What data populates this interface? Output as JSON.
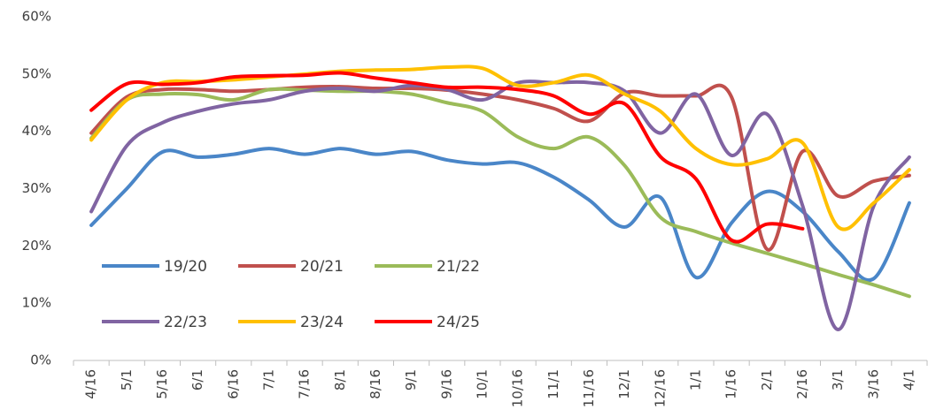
{
  "chart_data": {
    "type": "line",
    "categories": [
      "4/16",
      "5/1",
      "5/16",
      "6/1",
      "6/16",
      "7/1",
      "7/16",
      "8/1",
      "8/16",
      "9/1",
      "9/16",
      "10/1",
      "10/16",
      "11/1",
      "11/16",
      "12/1",
      "12/16",
      "1/1",
      "1/16",
      "2/1",
      "2/16",
      "3/1",
      "3/16",
      "4/1"
    ],
    "series": [
      {
        "name": "19/20",
        "color": "#4a86c8",
        "values": [
          23.6,
          30,
          36.4,
          35.5,
          36,
          37,
          36,
          37,
          36,
          36.5,
          35,
          34.3,
          34.5,
          32,
          28,
          23.3,
          28.5,
          14.5,
          24,
          29.5,
          26,
          19,
          14.3,
          27.5
        ]
      },
      {
        "name": "20/21",
        "color": "#c0504d",
        "values": [
          39.7,
          46,
          47.3,
          47.3,
          47,
          47.3,
          47.7,
          47.8,
          47.5,
          47.5,
          47.2,
          46.5,
          45.5,
          44,
          41.8,
          46.7,
          46.2,
          46.2,
          46,
          19.4,
          36.5,
          28.7,
          31.3,
          32.3
        ]
      },
      {
        "name": "21/22",
        "color": "#9bbb59",
        "values": [
          38.8,
          45.5,
          46.5,
          46.4,
          45.5,
          47.3,
          47.2,
          47,
          47,
          46.5,
          45,
          43.5,
          39,
          37,
          39,
          34,
          25,
          22.5,
          20.5,
          18.7,
          16.9,
          15,
          13.2,
          11.2
        ]
      },
      {
        "name": "22/23",
        "color": "#8064a2",
        "values": [
          26,
          37.5,
          41.5,
          43.5,
          44.8,
          45.5,
          47,
          47.5,
          47,
          48,
          47.3,
          45.5,
          48.5,
          48.5,
          48.5,
          47,
          39.7,
          46.5,
          35.8,
          43,
          27,
          5.4,
          27,
          35.5
        ]
      },
      {
        "name": "23/24",
        "color": "#ffc000",
        "values": [
          38.5,
          45.5,
          48.5,
          48.7,
          49,
          49.5,
          50,
          50.5,
          50.7,
          50.8,
          51.2,
          51,
          48,
          48.5,
          49.8,
          46.5,
          43.5,
          37,
          34.2,
          35.2,
          38,
          23.3,
          27.5,
          33.3
        ]
      },
      {
        "name": "24/25",
        "color": "#ff0000",
        "values": [
          43.7,
          48.3,
          48.2,
          48.5,
          49.5,
          49.7,
          49.8,
          50.2,
          49.3,
          48.5,
          47.7,
          47.7,
          47.3,
          46.2,
          43,
          44.8,
          35.6,
          31.7,
          21,
          23.8,
          23,
          null,
          null,
          null
        ]
      }
    ],
    "ylim": [
      0,
      60
    ],
    "yticks": [
      {
        "value": 0,
        "label": "0%"
      },
      {
        "value": 10,
        "label": "10%"
      },
      {
        "value": 20,
        "label": "20%"
      },
      {
        "value": 30,
        "label": "30%"
      },
      {
        "value": 40,
        "label": "40%"
      },
      {
        "value": 50,
        "label": "50%"
      },
      {
        "value": 60,
        "label": "60%"
      }
    ],
    "grid": false,
    "legend": "lower left"
  }
}
